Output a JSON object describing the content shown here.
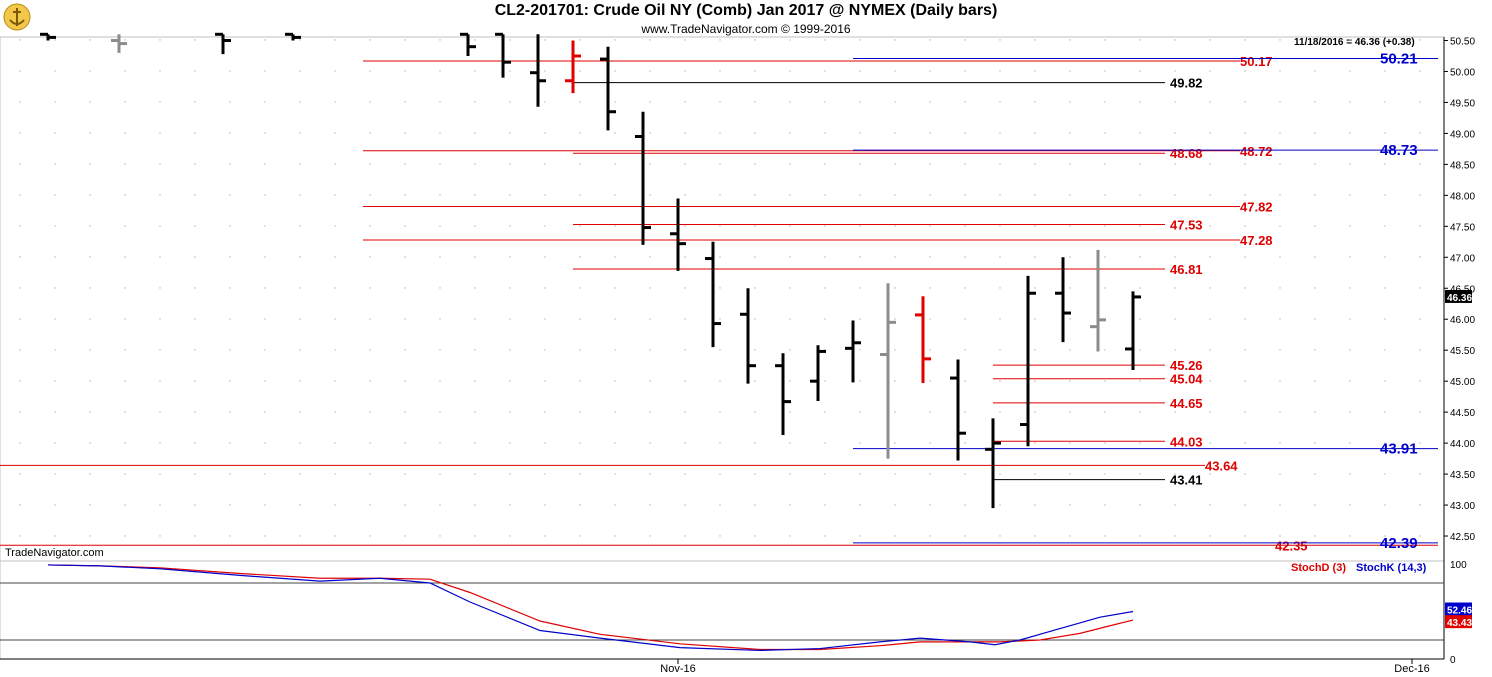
{
  "header": {
    "title": "CL2-201701:  Crude Oil NY (Comb) Jan 2017 @ NYMEX  (Daily bars)",
    "subtitle": "www.TradeNavigator.com © 1999-2016"
  },
  "brand": "TradeNavigator.com",
  "quote": "11/18/2016 = 46.36 (+0.38)",
  "last_price": "46.36",
  "indicator": {
    "stochd_label": "StochD (3)",
    "stochk_label": "StochK (14,3)",
    "stochd_value": "43.43",
    "stochk_value": "52.46",
    "axis_ticks": [
      "100",
      "0"
    ]
  },
  "x_ticks": [
    "Nov-16",
    "Dec-16"
  ],
  "colors": {
    "red": "#e00000",
    "blue": "#0000cc",
    "black": "#000000",
    "gray": "#8c8c8c",
    "green": "#00cc00"
  },
  "chart_data": {
    "type": "bar",
    "subtype": "ohlc",
    "ylim": [
      42.25,
      50.6
    ],
    "y_ticks": [
      "50.50",
      "50.00",
      "49.50",
      "49.00",
      "48.50",
      "48.00",
      "47.50",
      "47.00",
      "46.50",
      "46.00",
      "45.50",
      "45.00",
      "44.50",
      "44.00",
      "43.50",
      "43.00",
      "42.50"
    ],
    "bars": [
      {
        "x": 48,
        "open": 50.6,
        "high": 50.6,
        "low": 50.5,
        "close": 50.55,
        "color": "black"
      },
      {
        "x": 119,
        "open": 50.5,
        "high": 50.6,
        "low": 50.3,
        "close": 50.45,
        "color": "gray"
      },
      {
        "x": 223,
        "open": 50.6,
        "high": 50.6,
        "low": 50.28,
        "close": 50.5,
        "color": "black"
      },
      {
        "x": 293,
        "open": 50.6,
        "high": 50.6,
        "low": 50.5,
        "close": 50.55,
        "color": "black"
      },
      {
        "x": 468,
        "open": 50.6,
        "high": 50.6,
        "low": 50.25,
        "close": 50.4,
        "color": "black"
      },
      {
        "x": 503,
        "open": 50.6,
        "high": 50.6,
        "low": 49.9,
        "close": 50.15,
        "color": "black"
      },
      {
        "x": 538,
        "open": 49.98,
        "high": 50.6,
        "low": 49.43,
        "close": 49.85,
        "color": "black"
      },
      {
        "x": 573,
        "open": 49.85,
        "high": 50.5,
        "low": 49.65,
        "close": 50.25,
        "color": "red"
      },
      {
        "x": 608,
        "open": 50.2,
        "high": 50.4,
        "low": 49.05,
        "close": 49.35,
        "color": "black"
      },
      {
        "x": 643,
        "open": 48.95,
        "high": 49.35,
        "low": 47.2,
        "close": 47.48,
        "color": "black"
      },
      {
        "x": 678,
        "open": 47.38,
        "high": 47.95,
        "low": 46.78,
        "close": 47.22,
        "color": "black"
      },
      {
        "x": 713,
        "open": 46.98,
        "high": 47.25,
        "low": 45.55,
        "close": 45.93,
        "color": "black"
      },
      {
        "x": 748,
        "open": 46.08,
        "high": 46.5,
        "low": 44.96,
        "close": 45.25,
        "color": "black"
      },
      {
        "x": 783,
        "open": 45.25,
        "high": 45.45,
        "low": 44.13,
        "close": 44.67,
        "color": "black"
      },
      {
        "x": 818,
        "open": 45.0,
        "high": 45.58,
        "low": 44.68,
        "close": 45.48,
        "color": "black"
      },
      {
        "x": 853,
        "open": 45.53,
        "high": 45.98,
        "low": 44.98,
        "close": 45.62,
        "color": "black"
      },
      {
        "x": 888,
        "open": 45.43,
        "high": 46.58,
        "low": 43.75,
        "close": 45.95,
        "color": "gray"
      },
      {
        "x": 923,
        "open": 46.07,
        "high": 46.37,
        "low": 44.97,
        "close": 45.36,
        "color": "red"
      },
      {
        "x": 958,
        "open": 45.05,
        "high": 45.35,
        "low": 43.72,
        "close": 44.16,
        "color": "black"
      },
      {
        "x": 993,
        "open": 43.9,
        "high": 44.4,
        "low": 42.95,
        "close": 44.0,
        "color": "black"
      },
      {
        "x": 1028,
        "open": 44.3,
        "high": 46.7,
        "low": 43.95,
        "close": 46.42,
        "color": "black"
      },
      {
        "x": 1063,
        "open": 46.42,
        "high": 47.0,
        "low": 45.63,
        "close": 46.1,
        "color": "black"
      },
      {
        "x": 1098,
        "open": 45.88,
        "high": 47.12,
        "low": 45.48,
        "close": 45.99,
        "color": "gray"
      },
      {
        "x": 1133,
        "open": 45.52,
        "high": 46.45,
        "low": 45.18,
        "close": 46.36,
        "color": "black"
      }
    ],
    "levels": [
      {
        "value": 50.17,
        "label": "50.17",
        "color": "red",
        "x1": 363,
        "x2": 1240,
        "lx": 1240
      },
      {
        "value": 50.21,
        "label": "50.21",
        "color": "blue",
        "x1": 853,
        "x2": 1438,
        "lx": 1380
      },
      {
        "value": 49.82,
        "label": "49.82",
        "color": "black",
        "x1": 573,
        "x2": 1165,
        "lx": 1170
      },
      {
        "value": 48.72,
        "label": "48.72",
        "color": "red",
        "x1": 363,
        "x2": 1240,
        "lx": 1240
      },
      {
        "value": 48.68,
        "label": "48.68",
        "color": "red",
        "x1": 573,
        "x2": 1165,
        "lx": 1170
      },
      {
        "value": 48.73,
        "label": "48.73",
        "color": "blue",
        "x1": 853,
        "x2": 1438,
        "lx": 1380
      },
      {
        "value": 47.82,
        "label": "47.82",
        "color": "red",
        "x1": 363,
        "x2": 1240,
        "lx": 1240
      },
      {
        "value": 47.53,
        "label": "47.53",
        "color": "red",
        "x1": 573,
        "x2": 1165,
        "lx": 1170
      },
      {
        "value": 47.28,
        "label": "47.28",
        "color": "red",
        "x1": 363,
        "x2": 1240,
        "lx": 1240
      },
      {
        "value": 46.81,
        "label": "46.81",
        "color": "red",
        "x1": 573,
        "x2": 1165,
        "lx": 1170
      },
      {
        "value": 45.26,
        "label": "45.26",
        "color": "red",
        "x1": 993,
        "x2": 1165,
        "lx": 1170
      },
      {
        "value": 45.04,
        "label": "45.04",
        "color": "red",
        "x1": 993,
        "x2": 1165,
        "lx": 1170
      },
      {
        "value": 44.65,
        "label": "44.65",
        "color": "red",
        "x1": 993,
        "x2": 1165,
        "lx": 1170
      },
      {
        "value": 44.03,
        "label": "44.03",
        "color": "red",
        "x1": 993,
        "x2": 1165,
        "lx": 1170
      },
      {
        "value": 43.91,
        "label": "43.91",
        "color": "blue",
        "x1": 853,
        "x2": 1438,
        "lx": 1380
      },
      {
        "value": 43.64,
        "label": "43.64",
        "color": "red",
        "x1": 0,
        "x2": 1205,
        "lx": 1205
      },
      {
        "value": 43.41,
        "label": "43.41",
        "color": "black",
        "x1": 993,
        "x2": 1165,
        "lx": 1170
      },
      {
        "value": 42.35,
        "label": "42.35",
        "color": "red",
        "x1": 0,
        "x2": 1438,
        "lx": 1275
      },
      {
        "value": 42.39,
        "label": "42.39",
        "color": "blue",
        "x1": 853,
        "x2": 1438,
        "lx": 1380
      }
    ],
    "stoch": {
      "ylim": [
        0,
        100
      ],
      "ref_lines": [
        80,
        20
      ],
      "stochK": [
        [
          48,
          99
        ],
        [
          100,
          98
        ],
        [
          160,
          95
        ],
        [
          240,
          88
        ],
        [
          320,
          82
        ],
        [
          380,
          85
        ],
        [
          430,
          80
        ],
        [
          470,
          60
        ],
        [
          540,
          30
        ],
        [
          600,
          22
        ],
        [
          680,
          12
        ],
        [
          760,
          9
        ],
        [
          820,
          11
        ],
        [
          880,
          18
        ],
        [
          920,
          22
        ],
        [
          970,
          18
        ],
        [
          995,
          15
        ],
        [
          1020,
          20
        ],
        [
          1060,
          32
        ],
        [
          1100,
          44
        ],
        [
          1133,
          50
        ]
      ],
      "stochD": [
        [
          48,
          99
        ],
        [
          100,
          98
        ],
        [
          160,
          96
        ],
        [
          240,
          90
        ],
        [
          320,
          85
        ],
        [
          380,
          85
        ],
        [
          430,
          84
        ],
        [
          470,
          70
        ],
        [
          540,
          40
        ],
        [
          600,
          26
        ],
        [
          680,
          16
        ],
        [
          760,
          10
        ],
        [
          820,
          10
        ],
        [
          880,
          14
        ],
        [
          920,
          18
        ],
        [
          970,
          18
        ],
        [
          1000,
          18
        ],
        [
          1040,
          20
        ],
        [
          1080,
          27
        ],
        [
          1110,
          35
        ],
        [
          1133,
          41
        ]
      ]
    }
  }
}
